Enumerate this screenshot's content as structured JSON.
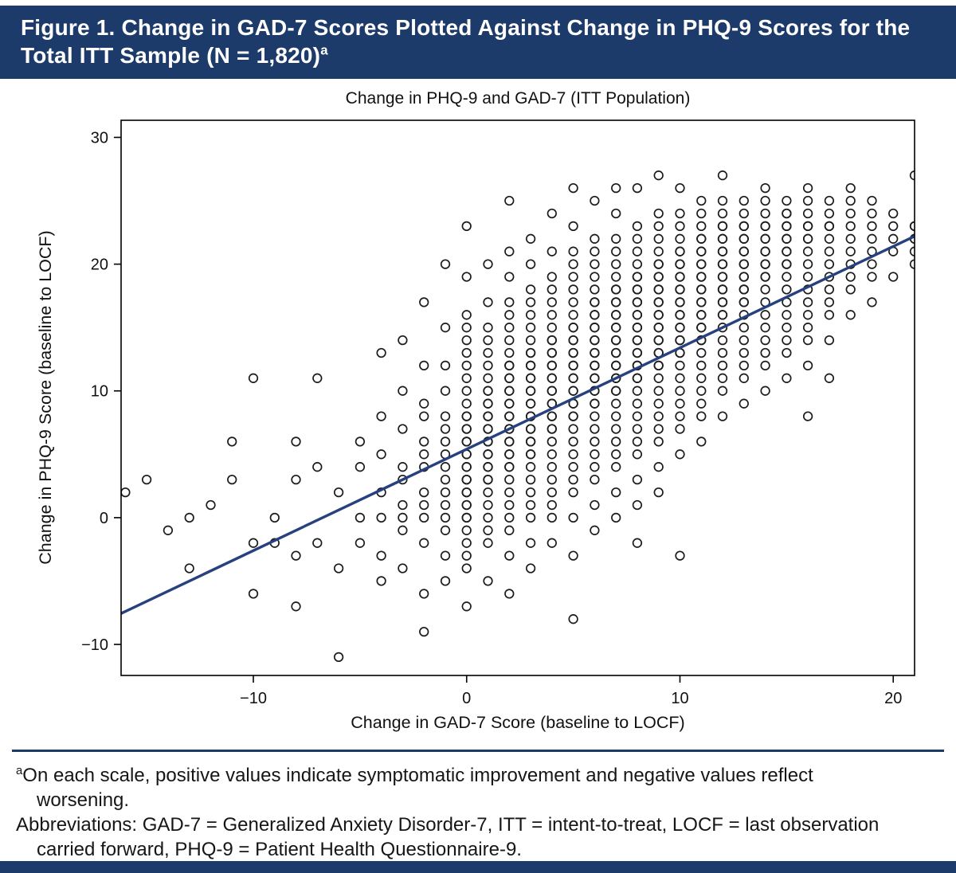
{
  "header": {
    "line1": "Figure 1. Change in GAD-7 Scores Plotted Against Change in PHQ-9 Scores for the",
    "line2": "Total ITT Sample (N = 1,820)",
    "superscript": "a"
  },
  "chart_data": {
    "type": "scatter",
    "title": "Change in PHQ-9 and GAD-7 (ITT Population)",
    "xlabel": "Change in GAD-7 Score (baseline to LOCF)",
    "ylabel": "Change in PHQ-9 Score (baseline to LOCF)",
    "n": 1820,
    "xlim": [
      -16.2,
      21.0
    ],
    "ylim": [
      -12.45,
      31.35
    ],
    "xticks": [
      -10,
      0,
      10,
      20
    ],
    "yticks": [
      -10,
      0,
      10,
      20,
      30
    ],
    "grid": false,
    "legend": "none",
    "marker": "open-circle",
    "marker_color": "#1c1c1c",
    "trend_line": {
      "slope": 0.8,
      "intercept": 5.4,
      "color": "#27417e"
    },
    "points_by_x": {
      "-16": [
        2
      ],
      "-15": [
        3
      ],
      "-14": [
        -1
      ],
      "-13": [
        0,
        -4
      ],
      "-12": [
        1
      ],
      "-11": [
        6,
        3
      ],
      "-10": [
        11,
        -2,
        -6
      ],
      "-9": [
        0,
        -2
      ],
      "-8": [
        6,
        3,
        -3,
        -7
      ],
      "-7": [
        11,
        4,
        -2
      ],
      "-6": [
        2,
        -4,
        -11
      ],
      "-5": [
        6,
        4,
        0,
        -2
      ],
      "-4": [
        13,
        8,
        5,
        2,
        0,
        -3,
        -5
      ],
      "-3": [
        14,
        10,
        7,
        4,
        3,
        1,
        0,
        -1,
        -4
      ],
      "-2": [
        17,
        12,
        9,
        8,
        6,
        5,
        4,
        2,
        1,
        0,
        -2,
        -6,
        -9
      ],
      "-1": [
        20,
        15,
        12,
        10,
        8,
        7,
        6,
        5,
        4,
        3,
        2,
        1,
        0,
        -1,
        -3,
        -5
      ],
      "0": [
        23,
        19,
        16,
        15,
        14,
        13,
        12,
        11,
        10,
        9,
        8,
        8,
        7,
        7,
        6,
        6,
        5,
        5,
        4,
        4,
        3,
        3,
        2,
        2,
        1,
        1,
        0,
        0,
        -1,
        -2,
        -3,
        -4,
        -7
      ],
      "1": [
        20,
        17,
        15,
        14,
        13,
        12,
        11,
        10,
        10,
        9,
        9,
        8,
        8,
        7,
        7,
        6,
        6,
        5,
        5,
        4,
        4,
        3,
        3,
        2,
        1,
        0,
        -1,
        -2,
        -5
      ],
      "2": [
        25,
        21,
        19,
        17,
        16,
        15,
        14,
        13,
        12,
        12,
        11,
        11,
        10,
        10,
        9,
        9,
        8,
        8,
        7,
        7,
        6,
        6,
        5,
        5,
        4,
        4,
        3,
        2,
        1,
        0,
        -1,
        -3,
        -6
      ],
      "3": [
        22,
        20,
        18,
        17,
        16,
        15,
        14,
        13,
        13,
        12,
        12,
        11,
        11,
        10,
        10,
        9,
        9,
        8,
        8,
        7,
        7,
        6,
        6,
        5,
        5,
        4,
        3,
        2,
        1,
        0,
        -2,
        -4
      ],
      "4": [
        24,
        21,
        19,
        18,
        17,
        16,
        15,
        14,
        14,
        13,
        13,
        12,
        12,
        11,
        11,
        10,
        10,
        9,
        9,
        8,
        8,
        7,
        7,
        6,
        5,
        4,
        3,
        2,
        1,
        0,
        -2
      ],
      "5": [
        26,
        23,
        21,
        20,
        19,
        18,
        17,
        16,
        15,
        15,
        14,
        14,
        13,
        13,
        12,
        12,
        11,
        11,
        10,
        10,
        9,
        9,
        8,
        8,
        7,
        6,
        5,
        4,
        3,
        2,
        0,
        -3,
        -8
      ],
      "6": [
        25,
        22,
        21,
        20,
        19,
        18,
        17,
        17,
        16,
        16,
        15,
        15,
        14,
        14,
        13,
        13,
        12,
        12,
        11,
        11,
        10,
        10,
        9,
        9,
        8,
        7,
        6,
        5,
        4,
        3,
        1,
        -1
      ],
      "7": [
        26,
        24,
        22,
        21,
        20,
        19,
        18,
        18,
        17,
        17,
        16,
        16,
        15,
        15,
        14,
        14,
        13,
        13,
        12,
        12,
        11,
        11,
        10,
        10,
        9,
        8,
        7,
        6,
        5,
        4,
        2,
        0
      ],
      "8": [
        26,
        23,
        22,
        21,
        20,
        19,
        19,
        18,
        18,
        17,
        17,
        16,
        16,
        15,
        15,
        14,
        14,
        13,
        13,
        12,
        12,
        11,
        11,
        10,
        9,
        8,
        7,
        6,
        5,
        3,
        1,
        -2
      ],
      "9": [
        27,
        24,
        23,
        22,
        21,
        20,
        20,
        19,
        19,
        18,
        18,
        17,
        17,
        16,
        16,
        15,
        15,
        14,
        14,
        13,
        13,
        12,
        12,
        11,
        10,
        9,
        8,
        7,
        6,
        4,
        2
      ],
      "10": [
        26,
        24,
        23,
        22,
        21,
        21,
        20,
        20,
        19,
        19,
        18,
        18,
        17,
        17,
        16,
        16,
        15,
        15,
        14,
        14,
        13,
        13,
        12,
        11,
        10,
        9,
        8,
        7,
        5,
        -3
      ],
      "11": [
        25,
        24,
        23,
        22,
        22,
        21,
        21,
        20,
        20,
        19,
        19,
        18,
        18,
        17,
        17,
        16,
        16,
        15,
        15,
        14,
        14,
        13,
        12,
        11,
        10,
        9,
        8,
        6
      ],
      "12": [
        27,
        25,
        24,
        23,
        23,
        22,
        22,
        21,
        21,
        20,
        20,
        19,
        19,
        18,
        18,
        17,
        17,
        16,
        16,
        15,
        14,
        13,
        12,
        11,
        10,
        8
      ],
      "13": [
        25,
        24,
        23,
        23,
        22,
        22,
        21,
        21,
        20,
        20,
        19,
        19,
        18,
        18,
        17,
        17,
        16,
        15,
        14,
        13,
        12,
        11,
        9
      ],
      "14": [
        26,
        25,
        24,
        23,
        23,
        22,
        22,
        21,
        21,
        20,
        20,
        19,
        19,
        18,
        17,
        16,
        15,
        14,
        13,
        12,
        10
      ],
      "15": [
        25,
        24,
        24,
        23,
        23,
        22,
        22,
        21,
        21,
        20,
        20,
        19,
        18,
        17,
        16,
        15,
        14,
        13,
        11
      ],
      "16": [
        26,
        25,
        24,
        23,
        23,
        22,
        22,
        21,
        20,
        19,
        18,
        17,
        16,
        15,
        14,
        12,
        8
      ],
      "17": [
        25,
        24,
        23,
        23,
        22,
        21,
        20,
        19,
        18,
        17,
        16,
        14,
        11
      ],
      "18": [
        26,
        25,
        24,
        23,
        22,
        21,
        20,
        19,
        18,
        16
      ],
      "19": [
        25,
        24,
        23,
        22,
        21,
        20,
        19,
        17
      ],
      "20": [
        24,
        23,
        22,
        21,
        19
      ],
      "21": [
        27,
        23,
        23,
        22,
        22,
        21,
        20
      ]
    }
  },
  "footnotes": {
    "note": {
      "sup": "a",
      "line1": "On each scale, positive values indicate symptomatic improvement and negative values reflect",
      "line2": "worsening."
    },
    "abbreviations": {
      "line1": "Abbreviations: GAD-7 = Generalized Anxiety Disorder-7, ITT = intent-to-treat, LOCF = last observation",
      "line2": "carried forward, PHQ-9 = Patient Health Questionnaire-9."
    }
  },
  "colors": {
    "navy_band": "#1c3a6a",
    "trend_line": "#27417e",
    "marker_stroke": "#1c1c1c"
  }
}
